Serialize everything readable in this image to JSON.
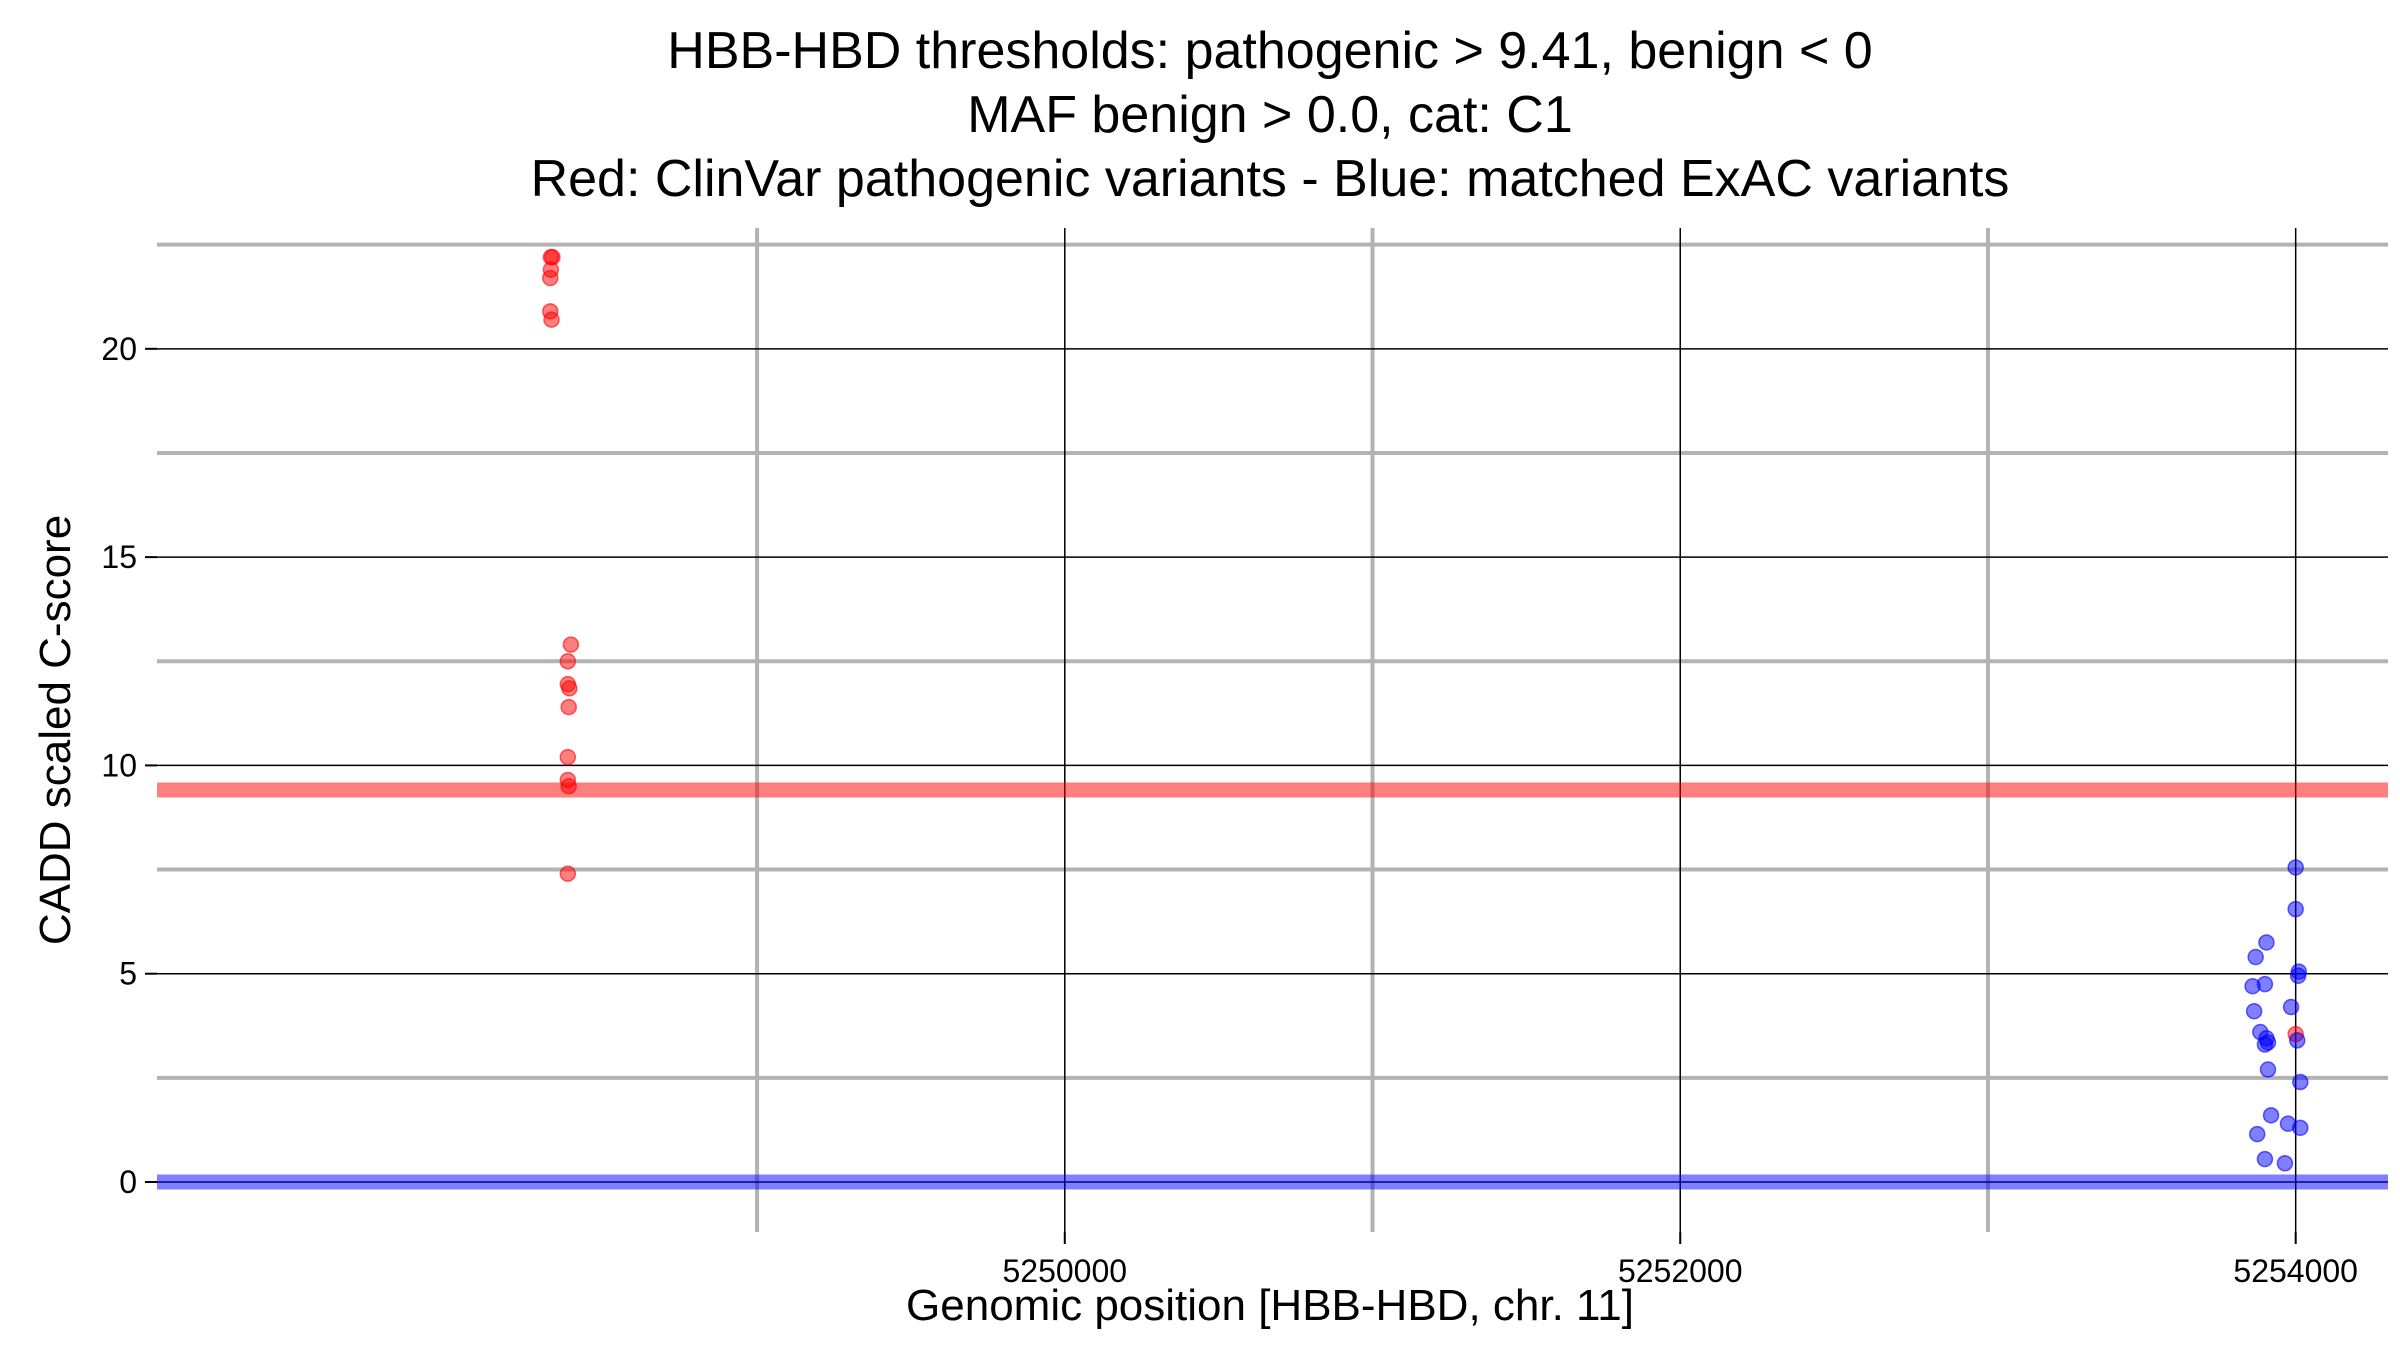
{
  "chart_data": {
    "type": "scatter",
    "title_lines": [
      "HBB-HBD thresholds: pathogenic > 9.41, benign < 0",
      "MAF benign > 0.0, cat: C1",
      "Red: ClinVar pathogenic variants - Blue: matched ExAC variants"
    ],
    "xlabel": "Genomic position [HBB-HBD, chr. 11]",
    "ylabel": "CADD scaled C-score",
    "xlim": [
      5247050,
      5254300
    ],
    "ylim": [
      -1.2,
      22.9
    ],
    "x_major_ticks": [
      5250000,
      5252000,
      5254000
    ],
    "x_tick_labels": [
      "5250000",
      "5252000",
      "5254000"
    ],
    "x_minor_ticks": [
      5249000,
      5251000,
      5253000
    ],
    "y_major_ticks": [
      0,
      5,
      10,
      15,
      20
    ],
    "y_tick_labels": [
      "0",
      "5",
      "10",
      "15",
      "20"
    ],
    "y_minor_ticks": [
      2.5,
      7.5,
      12.5,
      17.5,
      22.5
    ],
    "grid": true,
    "thresholds": [
      {
        "name": "pathogenic",
        "value": 9.41,
        "color": "#ff0000"
      },
      {
        "name": "benign",
        "value": 0,
        "color": "#0000ff"
      }
    ],
    "series": [
      {
        "color": "#ff0000",
        "points": [
          [
            5248330,
            22.2
          ],
          [
            5248335,
            22.2
          ],
          [
            5248330,
            21.9
          ],
          [
            5248328,
            21.7
          ],
          [
            5248328,
            20.9
          ],
          [
            5248332,
            20.7
          ],
          [
            5248395,
            12.9
          ],
          [
            5248385,
            12.5
          ],
          [
            5248385,
            11.95
          ],
          [
            5248390,
            11.85
          ],
          [
            5248388,
            11.4
          ],
          [
            5248385,
            10.2
          ],
          [
            5248385,
            9.65
          ],
          [
            5248388,
            9.5
          ],
          [
            5248385,
            7.4
          ],
          [
            5254000,
            3.55
          ]
        ]
      },
      {
        "color": "#0000ff",
        "points": [
          [
            5254000,
            7.55
          ],
          [
            5254000,
            6.55
          ],
          [
            5253905,
            5.75
          ],
          [
            5253870,
            5.4
          ],
          [
            5254010,
            5.05
          ],
          [
            5254008,
            4.95
          ],
          [
            5253860,
            4.7
          ],
          [
            5253900,
            4.75
          ],
          [
            5253865,
            4.1
          ],
          [
            5253985,
            4.2
          ],
          [
            5253885,
            3.6
          ],
          [
            5253905,
            3.45
          ],
          [
            5253910,
            3.35
          ],
          [
            5253900,
            3.3
          ],
          [
            5254005,
            3.4
          ],
          [
            5253910,
            2.7
          ],
          [
            5254015,
            2.4
          ],
          [
            5253920,
            1.6
          ],
          [
            5253975,
            1.4
          ],
          [
            5254015,
            1.3
          ],
          [
            5253875,
            1.15
          ],
          [
            5253900,
            0.55
          ],
          [
            5253965,
            0.45
          ]
        ]
      }
    ]
  }
}
